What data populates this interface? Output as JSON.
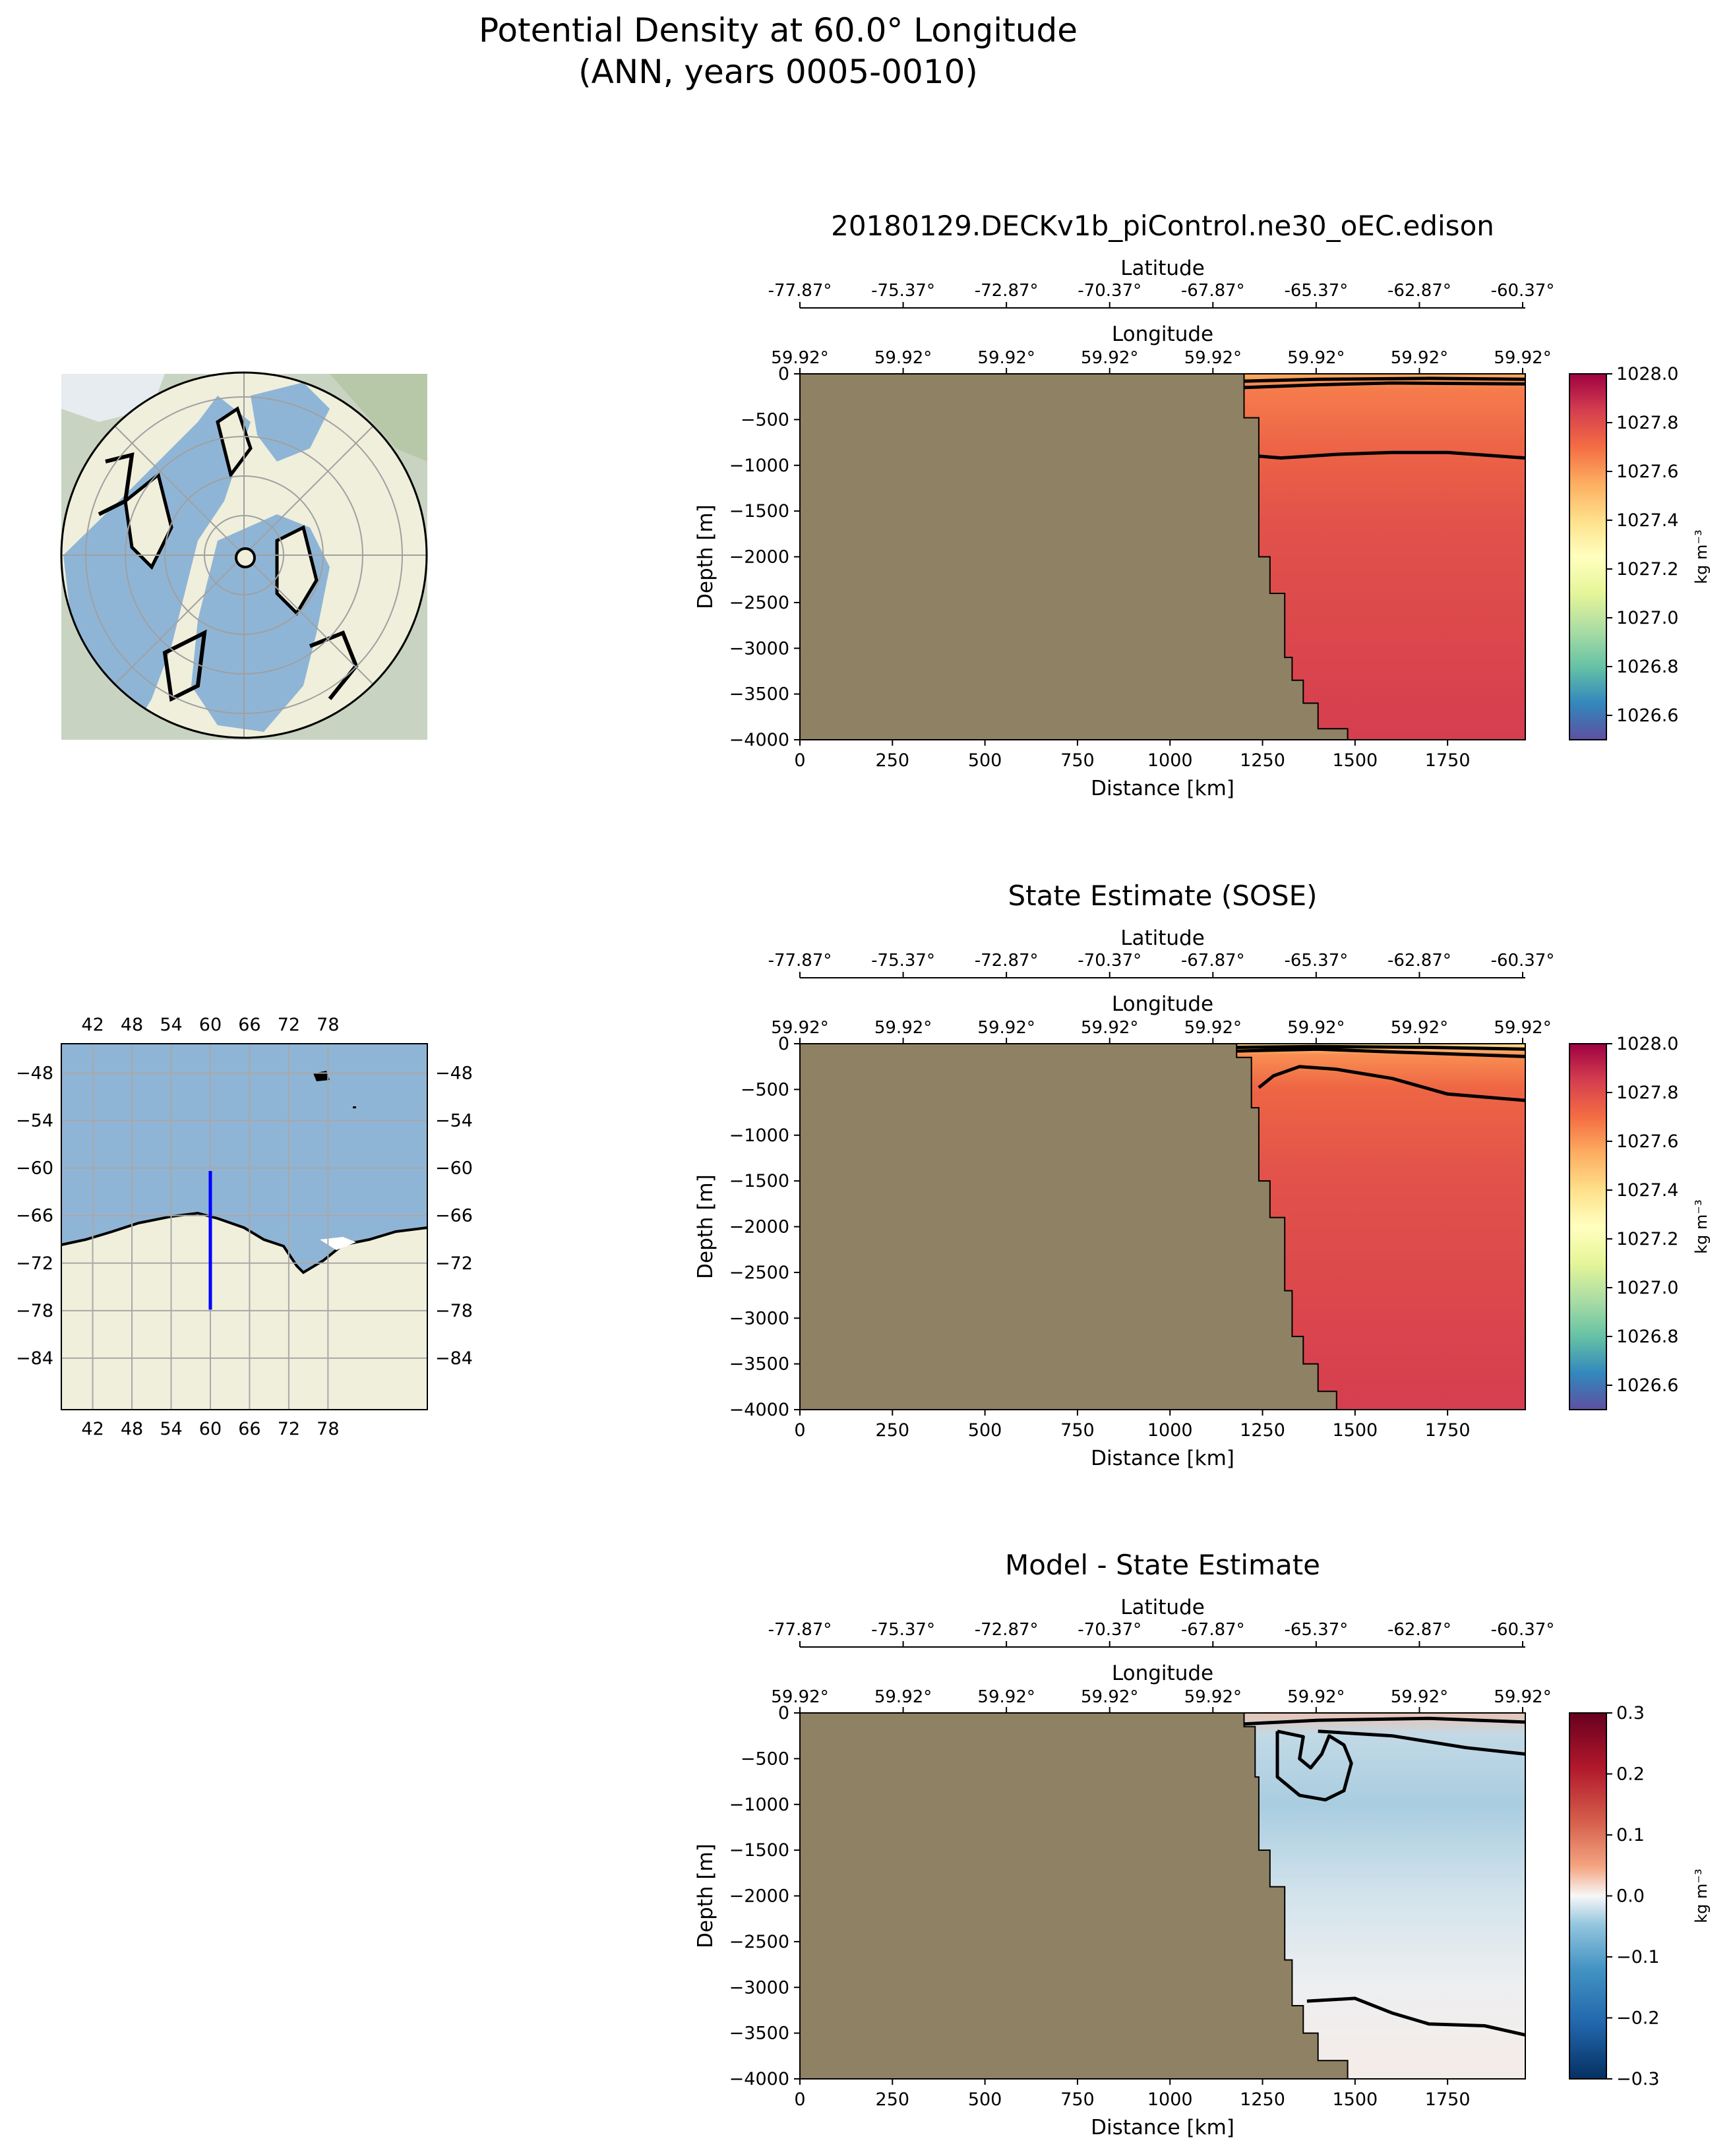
{
  "figure": {
    "title_line1": "Potential Density at 60.0° Longitude",
    "title_line2": "(ANN, years 0005-0010)"
  },
  "inset_map": {
    "lon_ticks": [
      "42",
      "48",
      "54",
      "60",
      "66",
      "72",
      "78"
    ],
    "lat_ticks": [
      "−48",
      "−54",
      "−60",
      "−66",
      "−72",
      "−78",
      "−84"
    ],
    "section_line": {
      "lon": 60,
      "lat_start": -60.37,
      "lat_end": -77.87,
      "color": "#0000ff"
    },
    "ocean_color": "#8fb5d6",
    "land_color": "#efefdc"
  },
  "colors": {
    "bathymetry": "#8f8163",
    "contour": "#000000"
  },
  "chart_data": [
    {
      "type": "heatmap",
      "title": "20180129.DECKv1b_piControl.ne30_oEC.edison",
      "top_axis_1": {
        "label": "Latitude",
        "ticks": [
          "-77.87°",
          "-75.37°",
          "-72.87°",
          "-70.37°",
          "-67.87°",
          "-65.37°",
          "-62.87°",
          "-60.37°"
        ]
      },
      "top_axis_2": {
        "label": "Longitude",
        "ticks": [
          "59.92°",
          "59.92°",
          "59.92°",
          "59.92°",
          "59.92°",
          "59.92°",
          "59.92°",
          "59.92°"
        ]
      },
      "xlabel": "Distance [km]",
      "ylabel": "Depth [m]",
      "xlim": [
        0,
        1960
      ],
      "ylim": [
        -4000,
        0
      ],
      "xticks": [
        "0",
        "250",
        "500",
        "750",
        "1000",
        "1250",
        "1500",
        "1750"
      ],
      "yticks": [
        "0",
        "−500",
        "−1000",
        "−1500",
        "−2000",
        "−2500",
        "−3000",
        "−3500",
        "−4000"
      ],
      "colorbar": {
        "label": "kg m⁻³",
        "range": [
          1026.5,
          1028.0
        ],
        "ticks": [
          "1028.0",
          "1027.8",
          "1027.6",
          "1027.4",
          "1027.2",
          "1027.0",
          "1026.8",
          "1026.6"
        ],
        "colormap": "Spectral_r"
      },
      "seafloor": [
        [
          1200,
          0
        ],
        [
          1200,
          -480
        ],
        [
          1240,
          -480
        ],
        [
          1240,
          -2000
        ],
        [
          1270,
          -2000
        ],
        [
          1270,
          -2400
        ],
        [
          1310,
          -2400
        ],
        [
          1310,
          -3100
        ],
        [
          1330,
          -3100
        ],
        [
          1330,
          -3350
        ],
        [
          1360,
          -3350
        ],
        [
          1360,
          -3600
        ],
        [
          1400,
          -3600
        ],
        [
          1400,
          -3880
        ],
        [
          1480,
          -3880
        ],
        [
          1480,
          -4000
        ]
      ],
      "contours": [
        {
          "level": 1027.8,
          "points": [
            [
              1240,
              -900
            ],
            [
              1300,
              -920
            ],
            [
              1450,
              -880
            ],
            [
              1600,
              -860
            ],
            [
              1750,
              -860
            ],
            [
              1960,
              -920
            ]
          ]
        },
        {
          "level": 1027.5,
          "points": [
            [
              1200,
              -150
            ],
            [
              1400,
              -120
            ],
            [
              1600,
              -100
            ],
            [
              1960,
              -110
            ]
          ]
        },
        {
          "level": 1027.3,
          "points": [
            [
              1200,
              -80
            ],
            [
              1400,
              -60
            ],
            [
              1700,
              -50
            ],
            [
              1960,
              -60
            ]
          ]
        }
      ]
    },
    {
      "type": "heatmap",
      "title": "State Estimate (SOSE)",
      "top_axis_1": {
        "label": "Latitude",
        "ticks": [
          "-77.87°",
          "-75.37°",
          "-72.87°",
          "-70.37°",
          "-67.87°",
          "-65.37°",
          "-62.87°",
          "-60.37°"
        ]
      },
      "top_axis_2": {
        "label": "Longitude",
        "ticks": [
          "59.92°",
          "59.92°",
          "59.92°",
          "59.92°",
          "59.92°",
          "59.92°",
          "59.92°",
          "59.92°"
        ]
      },
      "xlabel": "Distance [km]",
      "ylabel": "Depth [m]",
      "xlim": [
        0,
        1960
      ],
      "ylim": [
        -4000,
        0
      ],
      "xticks": [
        "0",
        "250",
        "500",
        "750",
        "1000",
        "1250",
        "1500",
        "1750"
      ],
      "yticks": [
        "0",
        "−500",
        "−1000",
        "−1500",
        "−2000",
        "−2500",
        "−3000",
        "−3500",
        "−4000"
      ],
      "colorbar": {
        "label": "kg m⁻³",
        "range": [
          1026.5,
          1028.0
        ],
        "ticks": [
          "1028.0",
          "1027.8",
          "1027.6",
          "1027.4",
          "1027.2",
          "1027.0",
          "1026.8",
          "1026.6"
        ],
        "colormap": "Spectral_r"
      },
      "seafloor": [
        [
          1180,
          0
        ],
        [
          1180,
          -150
        ],
        [
          1220,
          -150
        ],
        [
          1220,
          -700
        ],
        [
          1240,
          -700
        ],
        [
          1240,
          -1500
        ],
        [
          1270,
          -1500
        ],
        [
          1270,
          -1900
        ],
        [
          1310,
          -1900
        ],
        [
          1310,
          -2700
        ],
        [
          1330,
          -2700
        ],
        [
          1330,
          -3200
        ],
        [
          1360,
          -3200
        ],
        [
          1360,
          -3500
        ],
        [
          1400,
          -3500
        ],
        [
          1400,
          -3800
        ],
        [
          1450,
          -3800
        ],
        [
          1450,
          -4000
        ]
      ],
      "contours": [
        {
          "level": 1027.8,
          "points": [
            [
              1240,
              -480
            ],
            [
              1280,
              -350
            ],
            [
              1350,
              -250
            ],
            [
              1450,
              -280
            ],
            [
              1600,
              -380
            ],
            [
              1750,
              -550
            ],
            [
              1960,
              -620
            ]
          ]
        },
        {
          "level": 1027.5,
          "points": [
            [
              1180,
              -80
            ],
            [
              1400,
              -60
            ],
            [
              1600,
              -90
            ],
            [
              1960,
              -140
            ]
          ]
        },
        {
          "level": 1027.3,
          "points": [
            [
              1180,
              -40
            ],
            [
              1400,
              -30
            ],
            [
              1700,
              -40
            ],
            [
              1960,
              -60
            ]
          ]
        }
      ]
    },
    {
      "type": "heatmap",
      "title": "Model - State Estimate",
      "top_axis_1": {
        "label": "Latitude",
        "ticks": [
          "-77.87°",
          "-75.37°",
          "-72.87°",
          "-70.37°",
          "-67.87°",
          "-65.37°",
          "-62.87°",
          "-60.37°"
        ]
      },
      "top_axis_2": {
        "label": "Longitude",
        "ticks": [
          "59.92°",
          "59.92°",
          "59.92°",
          "59.92°",
          "59.92°",
          "59.92°",
          "59.92°",
          "59.92°"
        ]
      },
      "xlabel": "Distance [km]",
      "ylabel": "Depth [m]",
      "xlim": [
        0,
        1960
      ],
      "ylim": [
        -4000,
        0
      ],
      "xticks": [
        "0",
        "250",
        "500",
        "750",
        "1000",
        "1250",
        "1500",
        "1750"
      ],
      "yticks": [
        "0",
        "−500",
        "−1000",
        "−1500",
        "−2000",
        "−2500",
        "−3000",
        "−3500",
        "−4000"
      ],
      "colorbar": {
        "label": "kg m⁻³",
        "range": [
          -0.3,
          0.3
        ],
        "ticks": [
          "0.3",
          "0.2",
          "0.1",
          "0.0",
          "−0.1",
          "−0.2",
          "−0.3"
        ],
        "colormap": "RdBu_r"
      },
      "seafloor": [
        [
          1200,
          0
        ],
        [
          1200,
          -150
        ],
        [
          1230,
          -150
        ],
        [
          1230,
          -700
        ],
        [
          1240,
          -700
        ],
        [
          1240,
          -1500
        ],
        [
          1270,
          -1500
        ],
        [
          1270,
          -1900
        ],
        [
          1310,
          -1900
        ],
        [
          1310,
          -2700
        ],
        [
          1330,
          -2700
        ],
        [
          1330,
          -3200
        ],
        [
          1360,
          -3200
        ],
        [
          1360,
          -3500
        ],
        [
          1400,
          -3500
        ],
        [
          1400,
          -3800
        ],
        [
          1480,
          -3800
        ],
        [
          1480,
          -4000
        ]
      ],
      "contours": [
        {
          "level": -0.1,
          "points": [
            [
              1290,
              -200
            ],
            [
              1290,
              -700
            ],
            [
              1350,
              -900
            ],
            [
              1420,
              -950
            ],
            [
              1470,
              -850
            ],
            [
              1490,
              -550
            ],
            [
              1470,
              -350
            ],
            [
              1430,
              -250
            ],
            [
              1410,
              -450
            ],
            [
              1380,
              -600
            ],
            [
              1350,
              -500
            ],
            [
              1360,
              -260
            ],
            [
              1290,
              -200
            ]
          ]
        },
        {
          "level": 0.0,
          "points": [
            [
              1400,
              -200
            ],
            [
              1600,
              -250
            ],
            [
              1800,
              -380
            ],
            [
              1960,
              -450
            ]
          ]
        },
        {
          "level": 0.0,
          "points": [
            [
              1370,
              -3150
            ],
            [
              1500,
              -3120
            ],
            [
              1600,
              -3280
            ],
            [
              1700,
              -3400
            ],
            [
              1850,
              -3420
            ],
            [
              1960,
              -3520
            ]
          ]
        },
        {
          "level": 0.05,
          "points": [
            [
              1200,
              -120
            ],
            [
              1400,
              -80
            ],
            [
              1700,
              -60
            ],
            [
              1960,
              -100
            ]
          ]
        }
      ]
    }
  ]
}
